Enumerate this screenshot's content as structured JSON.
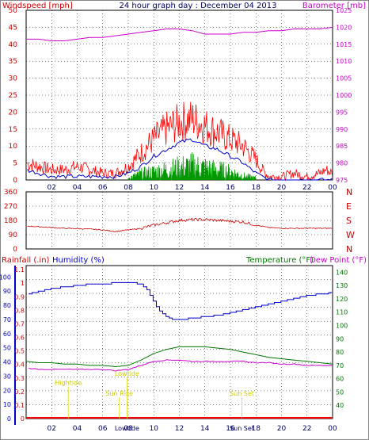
{
  "colors": {
    "wind": "#ff0000",
    "wind_avg": "#0000cc",
    "gust_low": "#009900",
    "barometer": "#cc00cc",
    "direction": "#cc0000",
    "humidity": "#0000cc",
    "temperature": "#007700",
    "dewpoint": "#cc00cc",
    "rain": "#ff0000",
    "annotation": "#dddd00",
    "grid": "#000000"
  },
  "chart_data": [
    {
      "type": "line",
      "panel": "wind",
      "title": "24 hour graph day : December 04 2013",
      "ylabel": "Windspeed [mph]",
      "y2label": "Barometer [mb]",
      "ylim": [
        0,
        50
      ],
      "y2lim": [
        975,
        1025
      ],
      "yticks": [
        "0",
        "5",
        "10",
        "15",
        "20",
        "25",
        "30",
        "35",
        "40",
        "45",
        "50"
      ],
      "y2ticks": [
        "975",
        "980",
        "985",
        "990",
        "995",
        "1000",
        "1005",
        "1010",
        "1015",
        "1020",
        "1025"
      ],
      "xlim": [
        0,
        24
      ],
      "xticks": [
        "02",
        "04",
        "06",
        "08",
        "10",
        "12",
        "14",
        "16",
        "18",
        "20",
        "22",
        "00"
      ],
      "series": [
        {
          "role": "wind",
          "x": [
            0,
            1,
            2,
            3,
            4,
            5,
            6,
            7,
            7.5,
            8,
            9,
            10,
            11,
            12,
            13,
            14,
            15,
            16,
            17,
            18,
            18.5,
            19,
            20,
            21,
            22,
            23,
            23.5,
            24
          ],
          "values": [
            5,
            4,
            3,
            3,
            4,
            3,
            2,
            2,
            3,
            4,
            8,
            12,
            15,
            17,
            18,
            16,
            14,
            12,
            10,
            6,
            3,
            1,
            1,
            2,
            1,
            2,
            3,
            2
          ]
        },
        {
          "role": "wind_avg",
          "x": [
            0,
            1,
            2,
            3,
            4,
            5,
            6,
            7,
            8,
            9,
            10,
            11,
            12,
            13,
            14,
            15,
            16,
            17,
            18,
            19,
            20,
            24
          ],
          "values": [
            3,
            2,
            1,
            1,
            1,
            1,
            1,
            1,
            2,
            4,
            7,
            9,
            11,
            12,
            10,
            9,
            7,
            5,
            2,
            0,
            0,
            0
          ]
        },
        {
          "role": "gust_low",
          "x": [
            8,
            9,
            10,
            11,
            12,
            13,
            14,
            15,
            16,
            17,
            18
          ],
          "values": [
            1,
            3,
            4,
            5,
            6,
            7,
            6,
            5,
            4,
            2,
            1
          ]
        },
        {
          "role": "barometer",
          "x": [
            0,
            1,
            2,
            3,
            4,
            5,
            6,
            7,
            8,
            9,
            10,
            11,
            12,
            13,
            14,
            15,
            16,
            17,
            18,
            19,
            20,
            21,
            22,
            23,
            24
          ],
          "values": [
            1016.5,
            1016.5,
            1016,
            1016,
            1016.5,
            1017,
            1017,
            1017.5,
            1018,
            1018.5,
            1019,
            1019.5,
            1019.5,
            1019,
            1018,
            1018,
            1018,
            1018.5,
            1018.5,
            1019,
            1019,
            1019.5,
            1019.5,
            1019.5,
            1020
          ]
        }
      ]
    },
    {
      "type": "line",
      "panel": "direction",
      "ylim": [
        0,
        360
      ],
      "yticks": [
        "0",
        "90",
        "180",
        "270",
        "360"
      ],
      "y2ticks": [
        "N",
        "W",
        "S",
        "E",
        "N"
      ],
      "xlim": [
        0,
        24
      ],
      "series": [
        {
          "role": "direction",
          "x": [
            0,
            1,
            2,
            3,
            4,
            5,
            6,
            7,
            8,
            9,
            10,
            11,
            12,
            13,
            14,
            15,
            16,
            17,
            18,
            19,
            20,
            21,
            22,
            23,
            24
          ],
          "values": [
            145,
            140,
            135,
            130,
            128,
            125,
            120,
            110,
            120,
            130,
            150,
            165,
            180,
            185,
            185,
            180,
            175,
            170,
            150,
            135,
            130,
            130,
            130,
            130,
            130
          ]
        }
      ]
    },
    {
      "type": "line",
      "panel": "climate",
      "ylabels": [
        "Rainfall (.in)",
        "Humidity (%)",
        "Temperature (°F)",
        "Dew Point (°F)"
      ],
      "ylim_rain": [
        0,
        1.1
      ],
      "yticks_rain": [
        "0",
        "0.1",
        "0.2",
        "0.3",
        "0.4",
        "0.5",
        "0.6",
        "0.7",
        "0.8",
        "0.9",
        "1",
        "1.1"
      ],
      "ylim_humidity": [
        0,
        100
      ],
      "yticks_humidity": [
        "0",
        "10",
        "20",
        "30",
        "40",
        "50",
        "60",
        "70",
        "80",
        "90",
        "100"
      ],
      "ylim_temp": [
        30,
        145
      ],
      "yticks_temp": [
        "40",
        "50",
        "60",
        "70",
        "80",
        "90",
        "100",
        "110",
        "120",
        "130",
        "140"
      ],
      "xlim": [
        0,
        24
      ],
      "series": [
        {
          "role": "humidity",
          "x": [
            0,
            1,
            2,
            3,
            4,
            5,
            6,
            7,
            8,
            9,
            9.5,
            10,
            10.5,
            11,
            11.5,
            12,
            13,
            14,
            15,
            16,
            17,
            18,
            19,
            20,
            21,
            22,
            23,
            24
          ],
          "values": [
            88,
            90,
            92,
            93,
            94,
            95,
            95,
            96,
            96,
            95,
            90,
            82,
            75,
            72,
            70,
            70,
            71,
            72,
            73,
            75,
            77,
            79,
            81,
            83,
            85,
            87,
            88,
            89
          ]
        },
        {
          "role": "temperature",
          "x": [
            0,
            1,
            2,
            3,
            4,
            5,
            6,
            7,
            8,
            9,
            10,
            11,
            12,
            13,
            14,
            15,
            16,
            17,
            18,
            19,
            20,
            21,
            22,
            23,
            24
          ],
          "values": [
            73,
            72,
            72,
            71,
            71,
            70,
            70,
            69,
            70,
            74,
            79,
            82,
            84,
            84,
            84,
            83,
            82,
            80,
            78,
            76,
            75,
            74,
            73,
            72,
            71
          ]
        },
        {
          "role": "dewpoint",
          "x": [
            0,
            1,
            2,
            3,
            4,
            5,
            6,
            7,
            8,
            9,
            10,
            11,
            12,
            13,
            14,
            15,
            16,
            17,
            18,
            19,
            20,
            21,
            22,
            23,
            24
          ],
          "values": [
            68,
            67,
            67,
            67,
            67,
            67,
            67,
            66,
            67,
            70,
            73,
            74,
            74,
            73,
            73,
            73,
            73,
            73,
            72,
            72,
            71,
            71,
            70,
            70,
            70
          ]
        },
        {
          "role": "rain",
          "x": [
            0,
            24
          ],
          "values": [
            0,
            0
          ]
        }
      ],
      "annotations": [
        {
          "label": "Hightide",
          "x": 3.3,
          "y_frac": 0.22
        },
        {
          "label": "Sun Rise",
          "x": 7.3,
          "y_frac": 0.15
        },
        {
          "label": "Lowtide",
          "x": 7.9,
          "y_frac": 0.28
        },
        {
          "label": "Sun Set",
          "x": 16.9,
          "y_frac": 0.15
        }
      ],
      "bottom_labels": [
        "Lowtide",
        "Sun Set"
      ]
    }
  ],
  "x_tick_labels": [
    "02",
    "04",
    "06",
    "08",
    "10",
    "12",
    "14",
    "16",
    "18",
    "20",
    "22",
    "00"
  ]
}
